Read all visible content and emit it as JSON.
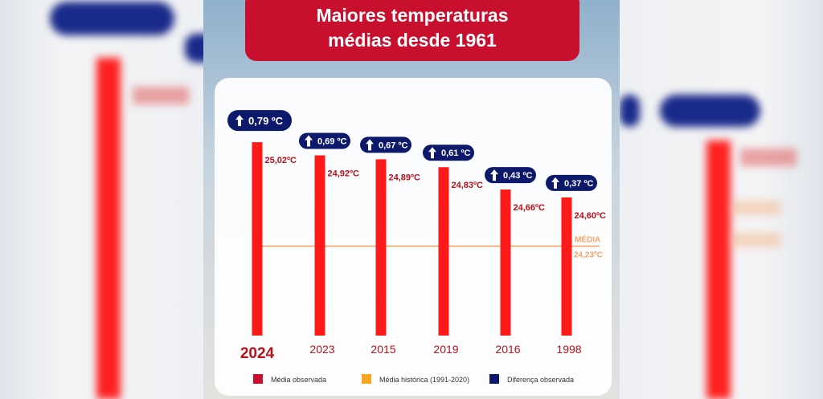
{
  "title_line1": "Maiores temperaturas",
  "title_line2": "médias desde 1961",
  "chart_data": {
    "type": "bar",
    "title": "Maiores temperaturas médias desde 1961",
    "categories": [
      "2024",
      "2023",
      "2015",
      "2019",
      "2016",
      "1998"
    ],
    "values": [
      25.02,
      24.92,
      24.89,
      24.83,
      24.66,
      24.6
    ],
    "value_labels": [
      "25,02ºC",
      "24,92ºC",
      "24,89ºC",
      "24,83ºC",
      "24,66ºC",
      "24,60ºC"
    ],
    "differences": [
      0.79,
      0.69,
      0.67,
      0.61,
      0.43,
      0.37
    ],
    "difference_labels": [
      "0,79 ºC",
      "0,69 ºC",
      "0,67 ºC",
      "0,61 ºC",
      "0,43 ºC",
      "0,37 ºC"
    ],
    "reference_line": {
      "value": 24.23,
      "label": "MÉDIA",
      "value_label": "24,23ºC"
    },
    "ylim": [
      23.55,
      25.1
    ],
    "legend": [
      {
        "label": "Média observada",
        "color": "#c8102e"
      },
      {
        "label": "Média histórica (1991-2020)",
        "color": "#f5a623"
      },
      {
        "label": "Diferença observada",
        "color": "#0d1a6b"
      }
    ],
    "legend_position": "bottom",
    "colors": {
      "bar": "#ff1a1a",
      "value_text": "#b5121b",
      "badge": "#0d1a6b",
      "media_line": "#f5a46b",
      "year_text": "#b5121b"
    }
  }
}
